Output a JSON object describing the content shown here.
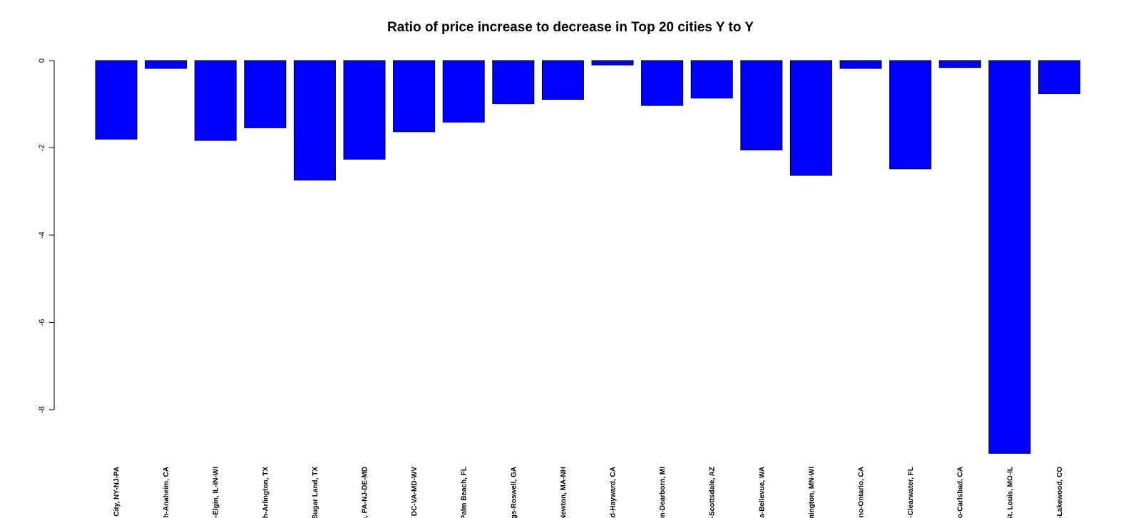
{
  "chart_data": {
    "type": "bar",
    "title": "Ratio of price increase to decrease in Top 20 cities Y to Y",
    "xlabel": "",
    "ylabel": "",
    "ylim": [
      -9,
      0
    ],
    "yticks": [
      0,
      -2,
      -4,
      -6,
      -8
    ],
    "ytick_labels": [
      "0",
      "-2",
      "-4",
      "-6",
      "-8"
    ],
    "grid": false,
    "bar_color": "#0000ff",
    "categories": [
      "y City, NY-NJ-PA",
      "ach-Anaheim, CA",
      "lle-Elgin, IL-IN-WI",
      "orth-Arlington, TX",
      "-Sugar Land, TX",
      "on, PA-NJ-DE-MD",
      "a, DC-VA-MD-WV",
      "t Palm Beach, FL",
      "rings-Roswell, GA",
      "-Newton, MA-NH",
      "and-Hayward, CA",
      "rren-Dearborn, MI",
      "a-Scottsdale, AZ",
      "ma-Bellevue, WA",
      "omington, MN-WI",
      "rdino-Ontario, CA",
      "rg-Clearwater, FL",
      "ego-Carlsbad, CA",
      "St. Louis, MO-IL",
      "a-Lakewood, CO"
    ],
    "values": [
      -1.8,
      -0.18,
      -1.83,
      -1.54,
      -2.74,
      -2.26,
      -1.63,
      -1.41,
      -0.99,
      -0.89,
      -0.1,
      -1.03,
      -0.86,
      -2.05,
      -2.63,
      -0.18,
      -2.48,
      -0.16,
      -9.0,
      -0.76
    ]
  }
}
